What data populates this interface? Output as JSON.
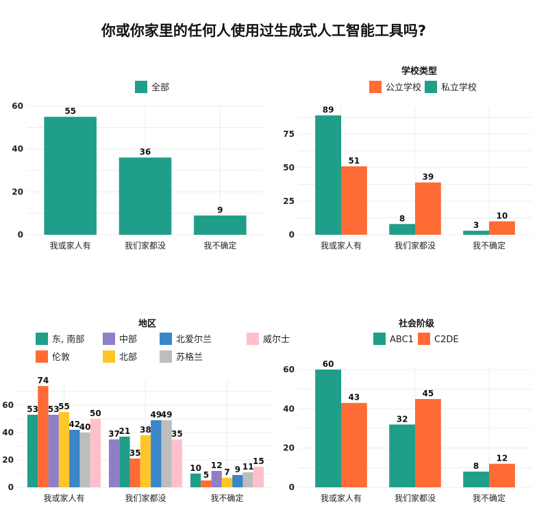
{
  "title": "你或你家里的任何人使用过生成式人工智能工具吗?",
  "chart_data": [
    {
      "type": "bar",
      "legend_title": "",
      "categories": [
        "我或家人有",
        "我们家都没",
        "我不确定"
      ],
      "series": [
        {
          "name": "全部",
          "color": "#1f9e89",
          "values": [
            55,
            36,
            9
          ]
        }
      ],
      "ylim": [
        0,
        60
      ],
      "yticks": [
        0,
        20,
        40,
        60
      ],
      "grid": true,
      "legend_position": "top"
    },
    {
      "type": "bar",
      "legend_title": "学校类型",
      "categories": [
        "我或家人有",
        "我们家都没",
        "我不确定"
      ],
      "legend_order": [
        1,
        0
      ],
      "series": [
        {
          "name": "私立学校",
          "color": "#1f9e89",
          "values": [
            89,
            8,
            3
          ]
        },
        {
          "name": "公立学校",
          "color": "#ff6b35",
          "values": [
            51,
            39,
            10
          ]
        }
      ],
      "ylim": [
        0,
        95
      ],
      "yticks": [
        0,
        25,
        50,
        75
      ],
      "grid": true,
      "legend_position": "top"
    },
    {
      "type": "bar",
      "legend_title": "地区",
      "categories": [
        "我或家人有",
        "我们家都没",
        "我不确定"
      ],
      "series": [
        {
          "name": "东, 南部",
          "color": "#1f9e89",
          "values": [
            53,
            37,
            10
          ]
        },
        {
          "name": "伦敦",
          "color": "#ff6b35",
          "values": [
            74,
            21,
            5
          ]
        },
        {
          "name": "中部",
          "color": "#8f7fc9",
          "values": [
            53,
            35,
            12
          ]
        },
        {
          "name": "北部",
          "color": "#ffc62a",
          "values": [
            55,
            38,
            7
          ]
        },
        {
          "name": "北爱尔兰",
          "color": "#3a86c8",
          "values": [
            42,
            49,
            9
          ]
        },
        {
          "name": "苏格兰",
          "color": "#bdbdbd",
          "values": [
            40,
            49,
            11
          ]
        },
        {
          "name": "威尔士",
          "color": "#ffc0cb",
          "values": [
            50,
            35,
            15
          ]
        }
      ],
      "bar_order": [
        [
          0,
          1,
          2,
          3,
          4,
          5,
          6
        ],
        [
          2,
          0,
          1,
          3,
          4,
          5,
          6
        ],
        [
          0,
          1,
          2,
          3,
          4,
          5,
          6
        ]
      ],
      "printed_labels": [
        [
          53,
          74,
          53,
          55,
          42,
          40,
          50
        ],
        [
          37,
          21,
          35,
          38,
          49,
          49,
          35
        ],
        [
          10,
          5,
          12,
          7,
          9,
          11,
          15
        ]
      ],
      "ylim": [
        0,
        78
      ],
      "yticks": [
        0,
        20,
        40,
        60
      ],
      "grid": true,
      "legend_position": "top"
    },
    {
      "type": "bar",
      "legend_title": "社会阶级",
      "categories": [
        "我或家人有",
        "我们家都没",
        "我不确定"
      ],
      "series": [
        {
          "name": "ABC1",
          "color": "#1f9e89",
          "values": [
            60,
            32,
            8
          ]
        },
        {
          "name": "C2DE",
          "color": "#ff6b35",
          "values": [
            43,
            45,
            12
          ]
        }
      ],
      "ylim": [
        0,
        62
      ],
      "yticks": [
        0,
        20,
        40,
        60
      ],
      "grid": true,
      "legend_position": "top"
    }
  ]
}
